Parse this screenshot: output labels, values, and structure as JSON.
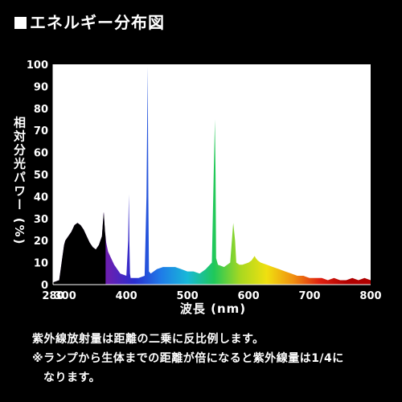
{
  "header": {
    "title": "■エネルギー分布図"
  },
  "notes": {
    "line1": "紫外線放射量は距離の二乗に反比例します。",
    "line2": "※ランプから生体までの距離が倍になると紫外線量は1/4に",
    "line3": "なります。"
  },
  "chart_data": {
    "type": "area",
    "title": "",
    "xlabel": "波長 (nm)",
    "ylabel": "相対分光パワー (%)",
    "xlim": [
      280,
      800
    ],
    "ylim": [
      0,
      100
    ],
    "x_ticks": [
      280,
      300,
      400,
      500,
      600,
      700,
      800
    ],
    "y_ticks": [
      0,
      10,
      20,
      30,
      40,
      50,
      60,
      70,
      80,
      90,
      100
    ],
    "grid": false,
    "series": [
      {
        "x": [
          280,
          290,
          295,
          298,
          300,
          305,
          310,
          315,
          320,
          325,
          330,
          335,
          340,
          345,
          350,
          355,
          360,
          363,
          365,
          367,
          370,
          375,
          380,
          390,
          400,
          403,
          404,
          405,
          406,
          407,
          410,
          420,
          430,
          433,
          435,
          436,
          437,
          440,
          450,
          460,
          470,
          480,
          490,
          500,
          510,
          520,
          530,
          540,
          543,
          545,
          546,
          547,
          550,
          560,
          570,
          575,
          578,
          580,
          585,
          590,
          600,
          605,
          610,
          612,
          615,
          620,
          630,
          640,
          650,
          660,
          670,
          680,
          690,
          700,
          710,
          720,
          730,
          740,
          750,
          760,
          770,
          780,
          790,
          800
        ],
        "values": [
          1,
          2,
          12,
          18,
          20,
          22,
          24,
          27,
          28,
          27,
          25,
          22,
          19,
          17,
          16,
          18,
          22,
          33,
          24,
          19,
          15,
          12,
          9,
          5,
          4,
          20,
          41,
          18,
          5,
          3,
          3,
          3,
          4,
          40,
          99,
          40,
          6,
          5,
          7,
          8,
          8,
          8,
          7,
          6,
          6,
          5,
          7,
          10,
          50,
          75,
          50,
          12,
          9,
          8,
          10,
          28,
          20,
          10,
          9,
          9,
          10,
          11,
          13,
          12,
          11,
          10,
          9,
          8,
          7,
          6,
          5,
          4,
          4,
          3,
          3,
          3,
          2,
          3,
          2,
          2,
          3,
          2,
          3,
          2
        ]
      }
    ]
  },
  "colors": {
    "background": "#000000",
    "plot_background": "#ffffff",
    "uv_fill": "#000000",
    "spectrum": [
      "#6a1fb0",
      "#2a2fd0",
      "#1f7be8",
      "#18b8d8",
      "#1fc85a",
      "#a8d820",
      "#f0e010",
      "#f09010",
      "#e02010",
      "#b00000"
    ]
  }
}
